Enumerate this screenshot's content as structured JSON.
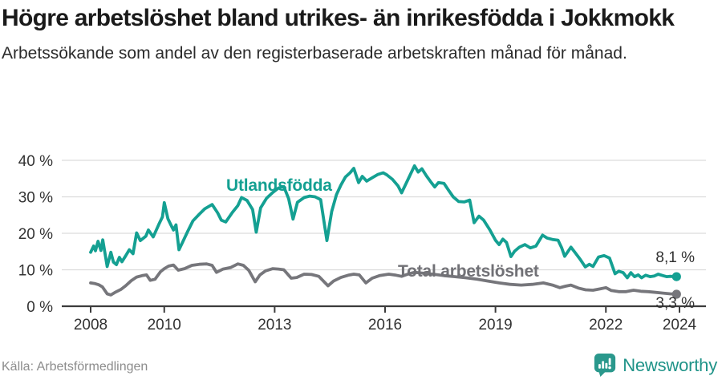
{
  "header": {
    "title": "Högre arbetslöshet bland utrikes- än inrikesfödda i Jokkmokk",
    "subtitle": "Arbetssökande som andel av den registerbaserade arbetskraften månad för månad."
  },
  "chart_data": {
    "type": "line",
    "unit": "%",
    "x_ticks": [
      2008,
      2010,
      2013,
      2016,
      2019,
      2022,
      2024
    ],
    "y_ticks": [
      0,
      10,
      20,
      30,
      40
    ],
    "y_tick_suffix": " %",
    "xlim": [
      2007.2,
      2024.7
    ],
    "ylim": [
      0,
      42
    ],
    "grid": "horizontal",
    "colors": {
      "grid": "#dcdcdc",
      "axis": "#3c3c3c",
      "tick_text": "#333333"
    },
    "series": [
      {
        "name": "Utlandsfödda",
        "color": "#14a092",
        "end_label": "8,1 %",
        "end_value": 8.1,
        "points": [
          [
            2008.0,
            14.8
          ],
          [
            2008.08,
            16.5
          ],
          [
            2008.13,
            15.2
          ],
          [
            2008.2,
            17.8
          ],
          [
            2008.28,
            15.3
          ],
          [
            2008.33,
            18.2
          ],
          [
            2008.45,
            10.9
          ],
          [
            2008.55,
            14.8
          ],
          [
            2008.62,
            12.1
          ],
          [
            2008.7,
            11.4
          ],
          [
            2008.78,
            13.4
          ],
          [
            2008.85,
            12.2
          ],
          [
            2008.95,
            13.8
          ],
          [
            2009.05,
            15.5
          ],
          [
            2009.15,
            14.4
          ],
          [
            2009.25,
            20.1
          ],
          [
            2009.35,
            18.0
          ],
          [
            2009.5,
            19.2
          ],
          [
            2009.57,
            20.9
          ],
          [
            2009.7,
            19.0
          ],
          [
            2009.85,
            22.4
          ],
          [
            2009.95,
            24.5
          ],
          [
            2010.0,
            28.4
          ],
          [
            2010.1,
            24.0
          ],
          [
            2010.18,
            22.3
          ],
          [
            2010.25,
            20.9
          ],
          [
            2010.32,
            22.3
          ],
          [
            2010.4,
            15.5
          ],
          [
            2010.5,
            17.6
          ],
          [
            2010.63,
            20.4
          ],
          [
            2010.78,
            23.4
          ],
          [
            2010.95,
            25.2
          ],
          [
            2011.1,
            26.7
          ],
          [
            2011.3,
            27.9
          ],
          [
            2011.45,
            25.6
          ],
          [
            2011.55,
            23.6
          ],
          [
            2011.67,
            23.1
          ],
          [
            2011.85,
            25.7
          ],
          [
            2012.0,
            27.6
          ],
          [
            2012.1,
            29.8
          ],
          [
            2012.25,
            29.0
          ],
          [
            2012.4,
            26.5
          ],
          [
            2012.5,
            20.3
          ],
          [
            2012.62,
            27.0
          ],
          [
            2012.78,
            29.6
          ],
          [
            2012.95,
            31.2
          ],
          [
            2013.1,
            32.4
          ],
          [
            2013.25,
            32.8
          ],
          [
            2013.38,
            29.5
          ],
          [
            2013.5,
            23.9
          ],
          [
            2013.62,
            28.5
          ],
          [
            2013.8,
            29.8
          ],
          [
            2013.95,
            30.2
          ],
          [
            2014.1,
            30.0
          ],
          [
            2014.25,
            29.2
          ],
          [
            2014.42,
            18.0
          ],
          [
            2014.55,
            26.0
          ],
          [
            2014.68,
            30.6
          ],
          [
            2014.8,
            33.2
          ],
          [
            2014.92,
            35.4
          ],
          [
            2015.05,
            36.6
          ],
          [
            2015.15,
            37.8
          ],
          [
            2015.28,
            33.9
          ],
          [
            2015.38,
            35.6
          ],
          [
            2015.5,
            34.3
          ],
          [
            2015.65,
            35.2
          ],
          [
            2015.8,
            36.1
          ],
          [
            2015.95,
            36.6
          ],
          [
            2016.05,
            36.0
          ],
          [
            2016.2,
            34.8
          ],
          [
            2016.35,
            33.0
          ],
          [
            2016.45,
            31.1
          ],
          [
            2016.57,
            33.6
          ],
          [
            2016.7,
            36.4
          ],
          [
            2016.8,
            38.5
          ],
          [
            2016.9,
            36.8
          ],
          [
            2017.0,
            37.7
          ],
          [
            2017.12,
            35.8
          ],
          [
            2017.25,
            34.0
          ],
          [
            2017.35,
            32.7
          ],
          [
            2017.45,
            33.9
          ],
          [
            2017.6,
            33.7
          ],
          [
            2017.72,
            31.9
          ],
          [
            2017.85,
            30.0
          ],
          [
            2018.0,
            28.7
          ],
          [
            2018.15,
            28.6
          ],
          [
            2018.3,
            29.1
          ],
          [
            2018.42,
            22.9
          ],
          [
            2018.55,
            24.7
          ],
          [
            2018.68,
            23.6
          ],
          [
            2018.85,
            20.9
          ],
          [
            2019.0,
            18.1
          ],
          [
            2019.1,
            16.9
          ],
          [
            2019.2,
            18.4
          ],
          [
            2019.3,
            17.5
          ],
          [
            2019.42,
            13.6
          ],
          [
            2019.52,
            15.1
          ],
          [
            2019.65,
            16.2
          ],
          [
            2019.8,
            16.9
          ],
          [
            2019.95,
            16.0
          ],
          [
            2020.1,
            16.5
          ],
          [
            2020.28,
            19.5
          ],
          [
            2020.4,
            18.7
          ],
          [
            2020.55,
            18.3
          ],
          [
            2020.7,
            18.1
          ],
          [
            2020.8,
            16.0
          ],
          [
            2020.88,
            13.7
          ],
          [
            2021.05,
            16.2
          ],
          [
            2021.18,
            14.5
          ],
          [
            2021.3,
            12.9
          ],
          [
            2021.44,
            10.8
          ],
          [
            2021.55,
            11.5
          ],
          [
            2021.65,
            10.9
          ],
          [
            2021.8,
            13.5
          ],
          [
            2021.95,
            13.9
          ],
          [
            2022.1,
            13.2
          ],
          [
            2022.25,
            8.9
          ],
          [
            2022.35,
            9.6
          ],
          [
            2022.47,
            9.2
          ],
          [
            2022.58,
            7.8
          ],
          [
            2022.68,
            9.2
          ],
          [
            2022.78,
            8.1
          ],
          [
            2022.88,
            8.6
          ],
          [
            2022.97,
            7.8
          ],
          [
            2023.08,
            8.5
          ],
          [
            2023.2,
            8.1
          ],
          [
            2023.32,
            8.3
          ],
          [
            2023.42,
            8.8
          ],
          [
            2023.55,
            8.4
          ],
          [
            2023.65,
            8.1
          ],
          [
            2023.75,
            8.2
          ],
          [
            2023.92,
            8.1
          ]
        ]
      },
      {
        "name": "Total arbetslöshet",
        "color": "#76767b",
        "end_label": "3,3 %",
        "end_value": 3.3,
        "points": [
          [
            2008.0,
            6.4
          ],
          [
            2008.12,
            6.2
          ],
          [
            2008.22,
            5.9
          ],
          [
            2008.32,
            5.3
          ],
          [
            2008.45,
            3.4
          ],
          [
            2008.55,
            3.1
          ],
          [
            2008.68,
            3.9
          ],
          [
            2008.82,
            4.6
          ],
          [
            2008.95,
            5.6
          ],
          [
            2009.1,
            7.0
          ],
          [
            2009.25,
            8.0
          ],
          [
            2009.4,
            8.4
          ],
          [
            2009.52,
            8.6
          ],
          [
            2009.62,
            7.1
          ],
          [
            2009.75,
            7.4
          ],
          [
            2009.9,
            9.5
          ],
          [
            2010.0,
            10.3
          ],
          [
            2010.12,
            11.0
          ],
          [
            2010.25,
            11.3
          ],
          [
            2010.38,
            9.9
          ],
          [
            2010.55,
            10.3
          ],
          [
            2010.75,
            11.2
          ],
          [
            2010.95,
            11.5
          ],
          [
            2011.15,
            11.6
          ],
          [
            2011.3,
            11.2
          ],
          [
            2011.42,
            9.3
          ],
          [
            2011.6,
            10.2
          ],
          [
            2011.8,
            10.6
          ],
          [
            2012.0,
            11.6
          ],
          [
            2012.15,
            11.2
          ],
          [
            2012.3,
            9.8
          ],
          [
            2012.47,
            6.7
          ],
          [
            2012.6,
            8.6
          ],
          [
            2012.75,
            9.7
          ],
          [
            2012.95,
            10.3
          ],
          [
            2013.1,
            10.2
          ],
          [
            2013.25,
            10.0
          ],
          [
            2013.45,
            7.7
          ],
          [
            2013.6,
            7.9
          ],
          [
            2013.8,
            8.8
          ],
          [
            2014.0,
            8.7
          ],
          [
            2014.2,
            8.2
          ],
          [
            2014.45,
            5.6
          ],
          [
            2014.6,
            6.9
          ],
          [
            2014.8,
            7.9
          ],
          [
            2015.0,
            8.5
          ],
          [
            2015.15,
            8.8
          ],
          [
            2015.3,
            8.6
          ],
          [
            2015.48,
            6.4
          ],
          [
            2015.65,
            7.7
          ],
          [
            2015.85,
            8.4
          ],
          [
            2016.1,
            8.8
          ],
          [
            2016.3,
            8.5
          ],
          [
            2016.45,
            8.2
          ],
          [
            2016.65,
            8.9
          ],
          [
            2016.8,
            9.3
          ],
          [
            2017.0,
            9.1
          ],
          [
            2017.3,
            8.8
          ],
          [
            2017.6,
            8.4
          ],
          [
            2017.9,
            8.1
          ],
          [
            2018.2,
            7.8
          ],
          [
            2018.5,
            7.4
          ],
          [
            2018.8,
            6.9
          ],
          [
            2019.1,
            6.4
          ],
          [
            2019.4,
            6.0
          ],
          [
            2019.7,
            5.8
          ],
          [
            2020.0,
            6.0
          ],
          [
            2020.3,
            6.4
          ],
          [
            2020.55,
            5.8
          ],
          [
            2020.75,
            5.1
          ],
          [
            2020.9,
            5.5
          ],
          [
            2021.05,
            5.8
          ],
          [
            2021.25,
            5.0
          ],
          [
            2021.45,
            4.5
          ],
          [
            2021.65,
            4.4
          ],
          [
            2021.85,
            4.8
          ],
          [
            2022.0,
            5.1
          ],
          [
            2022.15,
            4.3
          ],
          [
            2022.35,
            4.0
          ],
          [
            2022.55,
            4.0
          ],
          [
            2022.75,
            4.4
          ],
          [
            2022.95,
            4.1
          ],
          [
            2023.15,
            4.0
          ],
          [
            2023.35,
            3.8
          ],
          [
            2023.55,
            3.6
          ],
          [
            2023.75,
            3.4
          ],
          [
            2023.92,
            3.3
          ]
        ]
      }
    ]
  },
  "footer": {
    "source": "Källa: Arbetsförmedlingen",
    "brand": "Newsworthy"
  }
}
